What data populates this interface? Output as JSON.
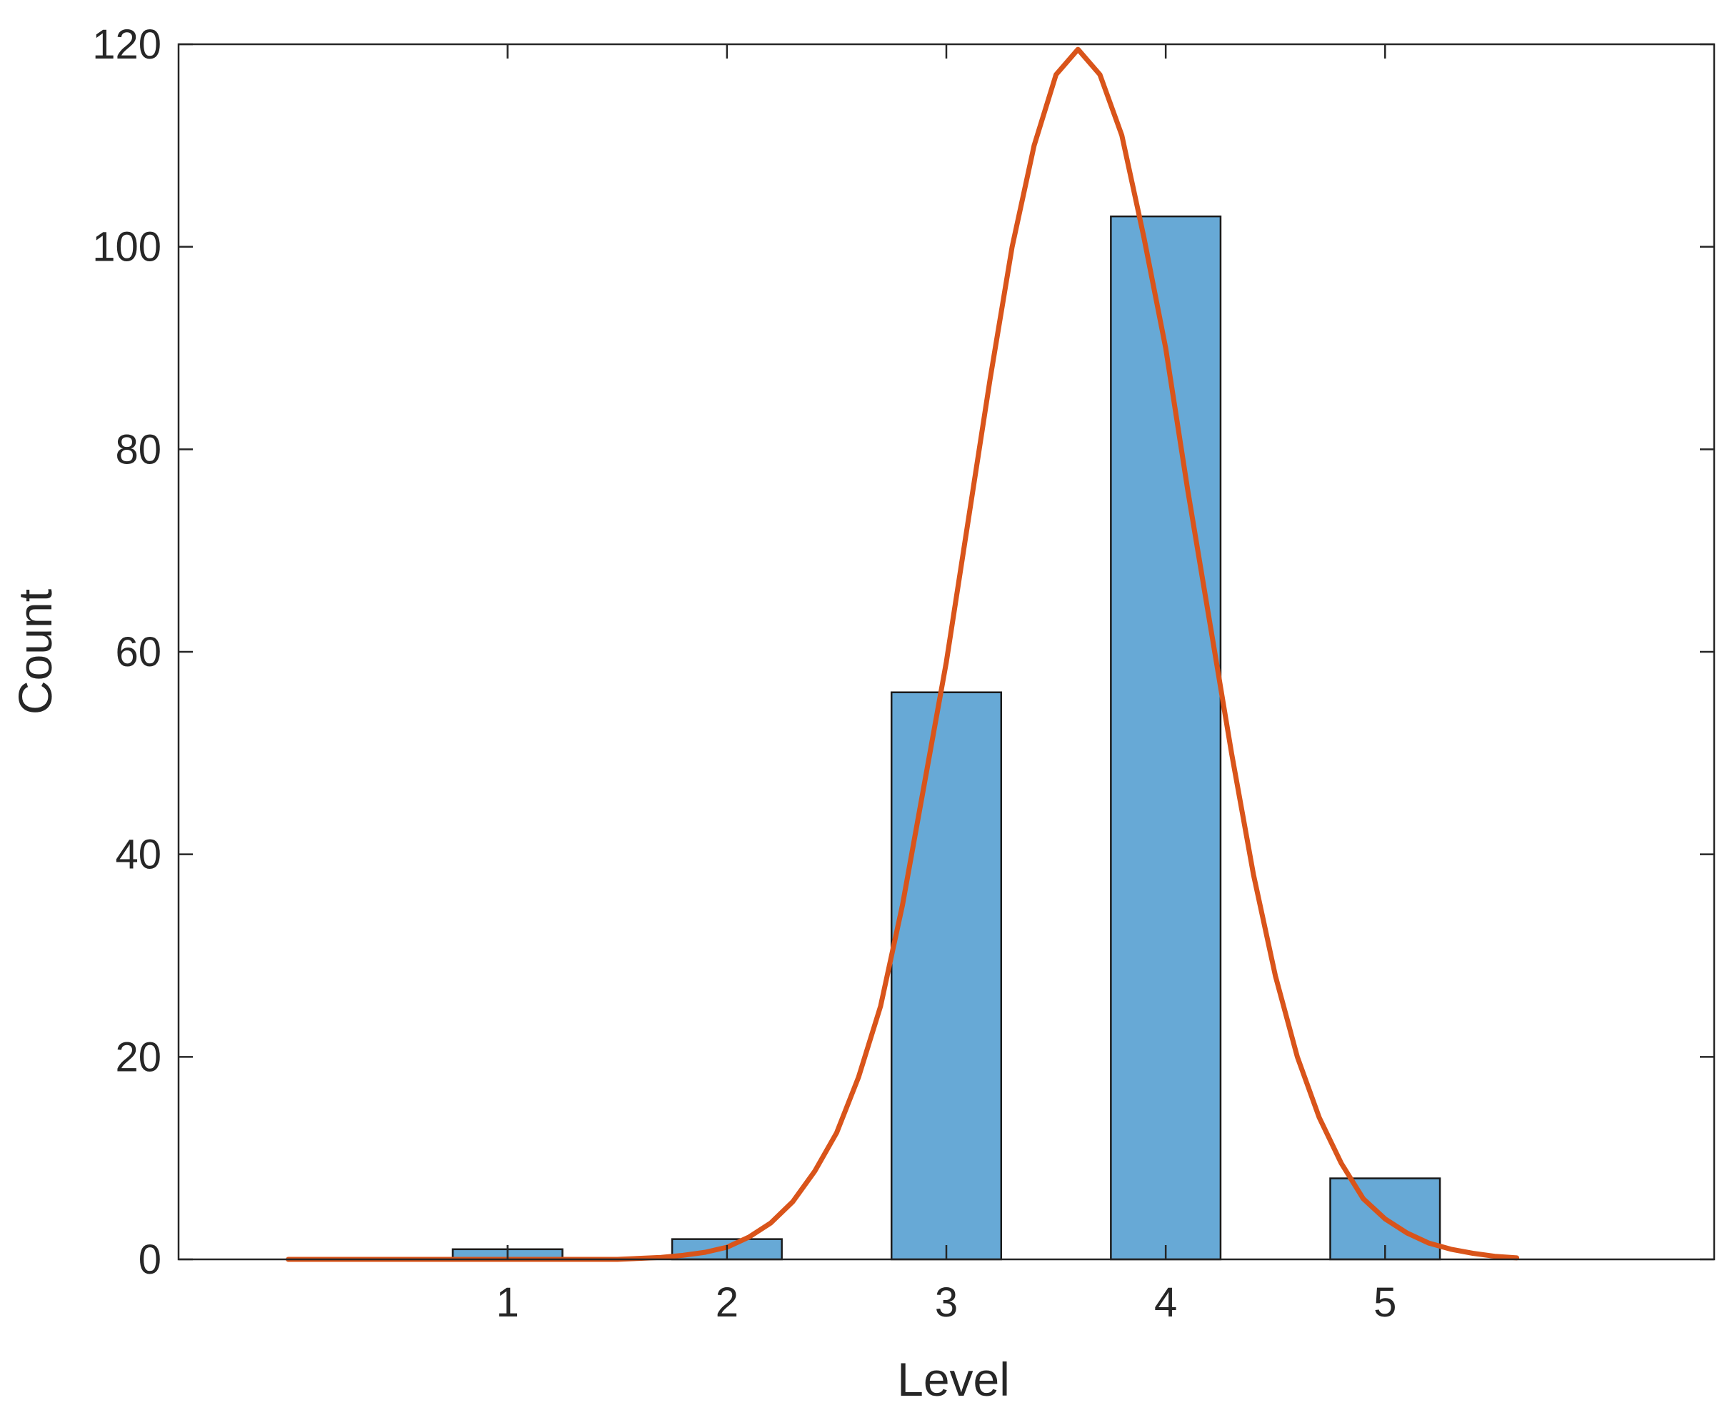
{
  "chart_data": {
    "type": "bar",
    "title": "",
    "xlabel": "Level",
    "ylabel": "Count",
    "categories": [
      1,
      2,
      3,
      4,
      5
    ],
    "values": [
      1,
      2,
      56,
      103,
      8
    ],
    "xlim": [
      -0.5,
      6.5
    ],
    "ylim": [
      0,
      120
    ],
    "xticks": [
      1,
      2,
      3,
      4,
      5
    ],
    "yticks": [
      0,
      20,
      40,
      60,
      80,
      100,
      120
    ],
    "bar_color": "#67a9d6",
    "bar_edge_color": "#1a1a1a",
    "fit_curve": {
      "type": "line",
      "color": "#d9541a",
      "x": [
        0.0,
        0.1,
        0.2,
        0.3,
        0.4,
        0.5,
        0.6,
        0.7,
        0.8,
        0.9,
        1.0,
        1.1,
        1.2,
        1.3,
        1.4,
        1.5,
        1.6,
        1.7,
        1.8,
        1.9,
        2.0,
        2.1,
        2.2,
        2.3,
        2.4,
        2.5,
        2.6,
        2.7,
        2.8,
        2.9,
        3.0,
        3.1,
        3.2,
        3.3,
        3.4,
        3.5,
        3.6,
        3.7,
        3.8,
        3.9,
        4.0,
        4.1,
        4.2,
        4.3,
        4.4,
        4.5,
        4.6,
        4.7,
        4.8,
        4.9,
        5.0,
        5.1,
        5.2,
        5.3,
        5.4,
        5.5,
        5.6
      ],
      "y": [
        0,
        0,
        0,
        0,
        0,
        0,
        0,
        0,
        0,
        0,
        0,
        0,
        0,
        0,
        0,
        0,
        0.1,
        0.2,
        0.4,
        0.7,
        1.2,
        2.2,
        3.6,
        5.7,
        8.7,
        12.5,
        18,
        25,
        35,
        47,
        59,
        73,
        87,
        100,
        110,
        117,
        119.5,
        117,
        111,
        101,
        90,
        76,
        63,
        50,
        38,
        28,
        20,
        14,
        9.5,
        6,
        4,
        2.6,
        1.6,
        1,
        0.6,
        0.3,
        0.15
      ]
    }
  }
}
